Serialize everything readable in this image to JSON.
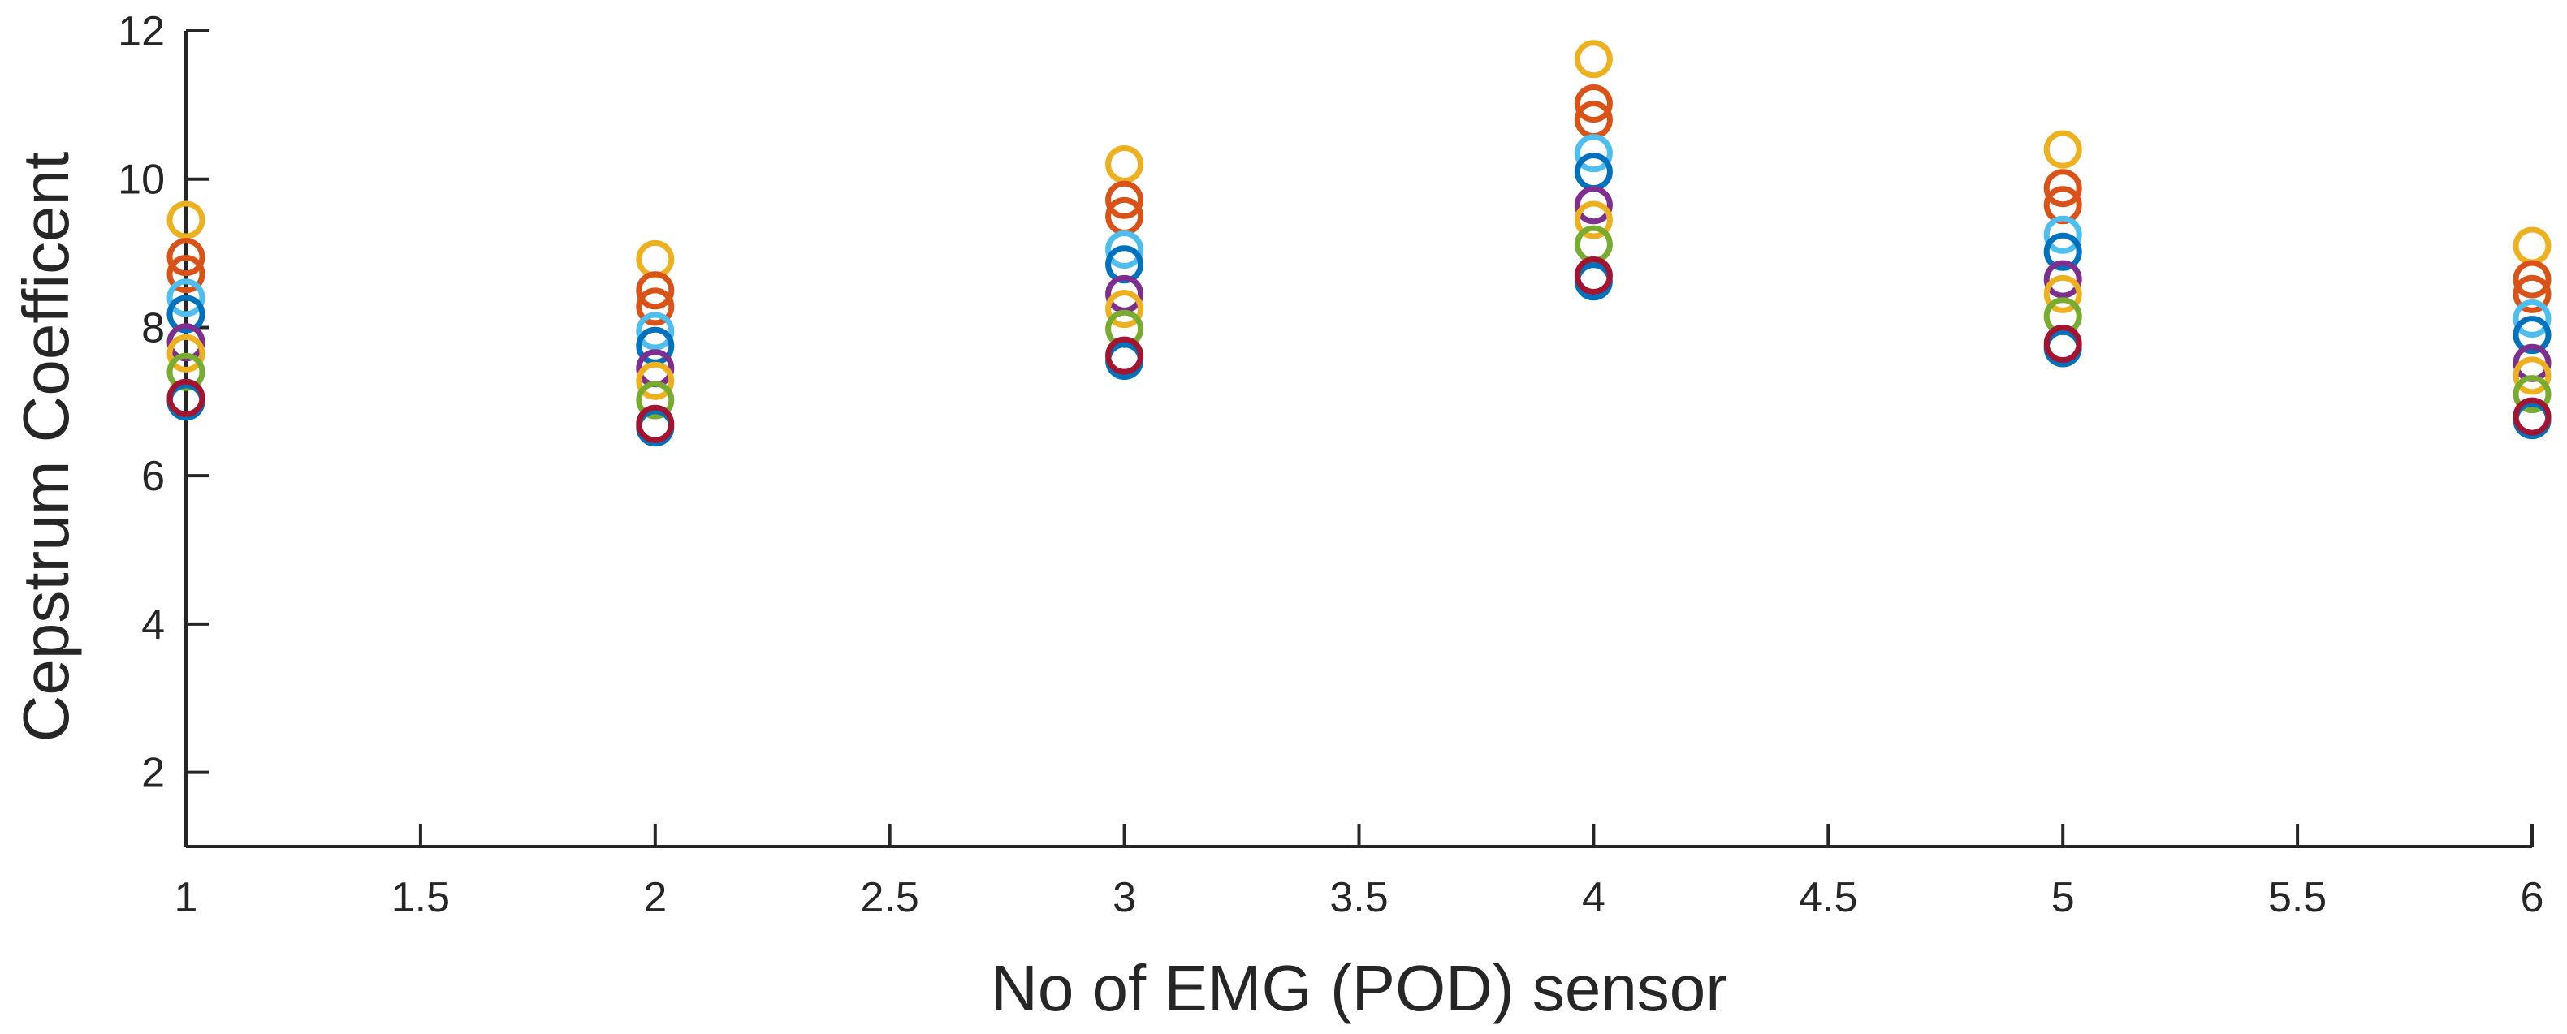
{
  "chart_data": {
    "type": "scatter",
    "title": "",
    "xlabel": "No of EMG (POD) sensor",
    "ylabel": "Cepstrum Coefficent",
    "xlim": [
      1,
      6
    ],
    "ylim": [
      1,
      12
    ],
    "xticks": [
      1,
      1.5,
      2,
      2.5,
      3,
      3.5,
      4,
      4.5,
      5,
      5.5,
      6
    ],
    "xtick_labels": [
      "1",
      "1.5",
      "2",
      "2.5",
      "3",
      "3.5",
      "4",
      "4.5",
      "5",
      "5.5",
      "6"
    ],
    "yticks": [
      2,
      4,
      6,
      8,
      10,
      12
    ],
    "ytick_labels": [
      "2",
      "4",
      "6",
      "8",
      "10",
      "12"
    ],
    "grid": false,
    "legend": "none",
    "marker": "open-circle",
    "x": [
      1,
      2,
      3,
      4,
      5,
      6
    ],
    "series": [
      {
        "color": "#EDB120",
        "values": [
          9.45,
          8.92,
          10.2,
          11.62,
          10.4,
          9.1
        ]
      },
      {
        "color": "#D95319",
        "values": [
          8.95,
          8.5,
          9.72,
          11.02,
          9.88,
          8.65
        ]
      },
      {
        "color": "#D95319",
        "values": [
          8.72,
          8.28,
          9.5,
          10.8,
          9.65,
          8.45
        ]
      },
      {
        "color": "#4DBEEE",
        "values": [
          8.4,
          7.95,
          9.05,
          10.35,
          9.25,
          8.12
        ]
      },
      {
        "color": "#0072BD",
        "values": [
          8.18,
          7.75,
          8.85,
          10.1,
          9.02,
          7.9
        ]
      },
      {
        "color": "#7E2F8E",
        "values": [
          7.8,
          7.45,
          8.45,
          9.65,
          8.65,
          7.52
        ]
      },
      {
        "color": "#EDB120",
        "values": [
          7.65,
          7.28,
          8.25,
          9.45,
          8.45,
          7.35
        ]
      },
      {
        "color": "#77AC30",
        "values": [
          7.4,
          7.02,
          7.98,
          9.12,
          8.15,
          7.1
        ]
      },
      {
        "color": "#0072BD",
        "values": [
          7.0,
          6.65,
          7.55,
          8.62,
          7.72,
          6.75
        ]
      },
      {
        "color": "#A2142F",
        "values": [
          7.05,
          6.7,
          7.62,
          8.7,
          7.78,
          6.8
        ]
      }
    ]
  }
}
